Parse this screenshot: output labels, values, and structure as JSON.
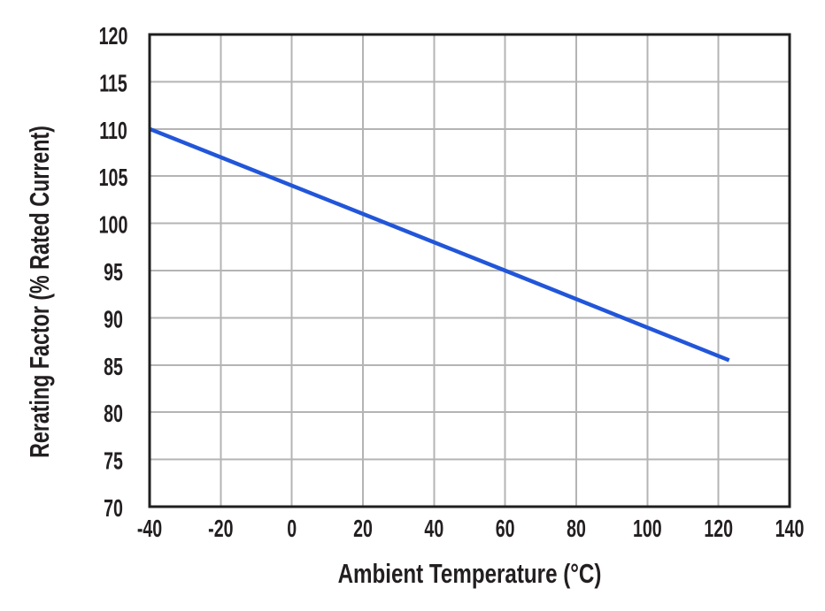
{
  "chart_data": {
    "type": "line",
    "title": "",
    "xlabel": "Ambient Temperature (°C)",
    "ylabel": "Rerating Factor (% Rated Current)",
    "xlim": [
      -40,
      140
    ],
    "ylim": [
      70,
      120
    ],
    "xticks": [
      -40,
      -20,
      0,
      20,
      40,
      60,
      80,
      100,
      120,
      140
    ],
    "yticks": [
      70,
      75,
      80,
      85,
      90,
      95,
      100,
      105,
      110,
      115,
      120
    ],
    "grid": true,
    "legend": false,
    "series": [
      {
        "name": "rerating-factor",
        "x": [
          -40,
          60,
          123
        ],
        "y": [
          110,
          95,
          85.5
        ],
        "color": "#2256d9"
      }
    ],
    "colors": {
      "grid": "#b4b4b4",
      "frame": "#1f1f1f",
      "text": "#231f20",
      "background": "#ffffff"
    }
  }
}
